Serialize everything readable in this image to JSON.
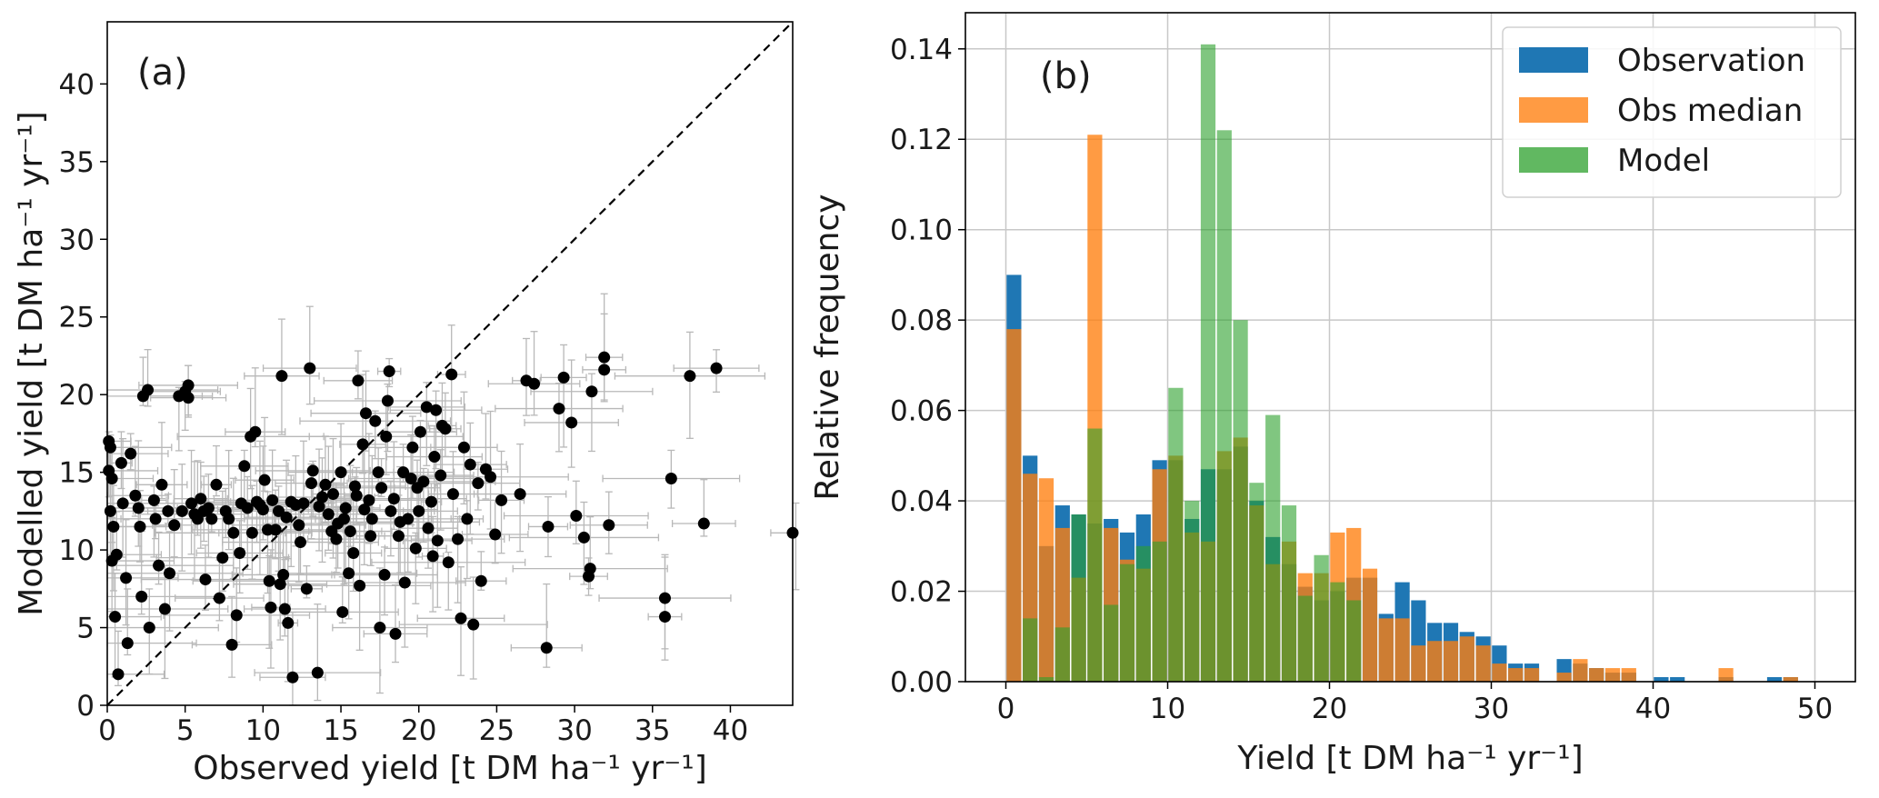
{
  "chart_data": [
    {
      "type": "scatter",
      "panel_label": "(a)",
      "xlabel": "Observed yield [t DM ha⁻¹ yr⁻¹]",
      "ylabel": "Modelled yield [t DM ha⁻¹ yr⁻¹]",
      "xlim": [
        0,
        44
      ],
      "ylim": [
        0,
        44
      ],
      "xticks": [
        0,
        5,
        10,
        15,
        20,
        25,
        30,
        35,
        40
      ],
      "yticks": [
        0,
        5,
        10,
        15,
        20,
        25,
        30,
        35,
        40
      ],
      "grid": false,
      "one_to_one_line": true,
      "colors": {
        "points": "#000000",
        "errorbars": "#b8b8b8",
        "diagonal": "#000000"
      },
      "points": [
        [
          0.1,
          17.0
        ],
        [
          0.2,
          16.6
        ],
        [
          0.1,
          15.1
        ],
        [
          0.3,
          14.6
        ],
        [
          0.2,
          12.5
        ],
        [
          0.4,
          11.5
        ],
        [
          0.3,
          9.3
        ],
        [
          0.6,
          9.7
        ],
        [
          0.5,
          5.7
        ],
        [
          0.7,
          2.0
        ],
        [
          0.9,
          15.6
        ],
        [
          1.0,
          13.0
        ],
        [
          1.2,
          8.2
        ],
        [
          1.5,
          16.2
        ],
        [
          1.3,
          4.0
        ],
        [
          1.8,
          13.5
        ],
        [
          2.0,
          12.7
        ],
        [
          2.1,
          11.5
        ],
        [
          2.2,
          7.0
        ],
        [
          2.3,
          19.9
        ],
        [
          2.6,
          20.3
        ],
        [
          2.7,
          5.0
        ],
        [
          3.0,
          13.2
        ],
        [
          3.1,
          12.0
        ],
        [
          3.3,
          9.0
        ],
        [
          3.5,
          14.2
        ],
        [
          3.7,
          6.2
        ],
        [
          3.9,
          12.5
        ],
        [
          4.0,
          8.5
        ],
        [
          4.3,
          11.6
        ],
        [
          4.6,
          19.9
        ],
        [
          4.8,
          12.5
        ],
        [
          5.0,
          20.2
        ],
        [
          5.2,
          19.8
        ],
        [
          5.2,
          20.6
        ],
        [
          5.4,
          13.0
        ],
        [
          5.6,
          12.3
        ],
        [
          5.8,
          12.0
        ],
        [
          6.0,
          13.3
        ],
        [
          6.2,
          12.5
        ],
        [
          6.3,
          8.1
        ],
        [
          6.5,
          12.7
        ],
        [
          6.7,
          12.0
        ],
        [
          7.0,
          14.2
        ],
        [
          7.2,
          6.9
        ],
        [
          7.4,
          9.5
        ],
        [
          7.6,
          12.5
        ],
        [
          7.8,
          12.0
        ],
        [
          8.0,
          3.9
        ],
        [
          8.1,
          11.1
        ],
        [
          8.3,
          5.8
        ],
        [
          8.5,
          9.8
        ],
        [
          8.6,
          13.0
        ],
        [
          8.8,
          15.4
        ],
        [
          9.0,
          12.7
        ],
        [
          9.2,
          17.3
        ],
        [
          9.5,
          17.6
        ],
        [
          9.3,
          11.1
        ],
        [
          9.6,
          13.1
        ],
        [
          9.8,
          12.9
        ],
        [
          10.0,
          12.6
        ],
        [
          10.1,
          14.5
        ],
        [
          10.3,
          11.3
        ],
        [
          10.4,
          8.0
        ],
        [
          10.5,
          6.3
        ],
        [
          10.6,
          13.2
        ],
        [
          10.8,
          11.3
        ],
        [
          11.0,
          12.5
        ],
        [
          11.1,
          7.8
        ],
        [
          11.2,
          21.2
        ],
        [
          11.3,
          8.4
        ],
        [
          11.4,
          6.2
        ],
        [
          11.5,
          12.1
        ],
        [
          11.6,
          5.3
        ],
        [
          11.8,
          13.1
        ],
        [
          11.9,
          1.8
        ],
        [
          12.1,
          12.9
        ],
        [
          12.3,
          11.6
        ],
        [
          12.4,
          10.5
        ],
        [
          12.6,
          13.0
        ],
        [
          12.8,
          7.5
        ],
        [
          13.0,
          21.7
        ],
        [
          13.1,
          14.3
        ],
        [
          13.2,
          15.1
        ],
        [
          13.5,
          2.1
        ],
        [
          13.6,
          12.8
        ],
        [
          13.8,
          13.4
        ],
        [
          14.0,
          14.2
        ],
        [
          14.2,
          12.3
        ],
        [
          14.4,
          11.2
        ],
        [
          14.5,
          13.6
        ],
        [
          14.7,
          10.7
        ],
        [
          14.8,
          11.7
        ],
        [
          15.0,
          15.0
        ],
        [
          15.1,
          6.0
        ],
        [
          15.2,
          12.0
        ],
        [
          15.3,
          12.7
        ],
        [
          15.5,
          8.5
        ],
        [
          15.6,
          11.2
        ],
        [
          15.8,
          9.8
        ],
        [
          15.9,
          14.1
        ],
        [
          16.0,
          13.5
        ],
        [
          16.1,
          20.9
        ],
        [
          16.2,
          7.7
        ],
        [
          16.4,
          16.8
        ],
        [
          16.5,
          12.6
        ],
        [
          16.6,
          18.8
        ],
        [
          16.8,
          13.2
        ],
        [
          16.9,
          10.9
        ],
        [
          17.0,
          12.0
        ],
        [
          17.2,
          18.3
        ],
        [
          17.4,
          15.0
        ],
        [
          17.5,
          5.0
        ],
        [
          17.6,
          14.0
        ],
        [
          17.8,
          8.4
        ],
        [
          17.9,
          17.3
        ],
        [
          18.0,
          19.6
        ],
        [
          18.1,
          21.5
        ],
        [
          18.2,
          12.5
        ],
        [
          18.4,
          13.3
        ],
        [
          18.5,
          4.6
        ],
        [
          18.7,
          10.9
        ],
        [
          18.8,
          11.8
        ],
        [
          19.0,
          15.0
        ],
        [
          19.1,
          7.9
        ],
        [
          19.3,
          12.0
        ],
        [
          19.5,
          14.6
        ],
        [
          19.6,
          16.6
        ],
        [
          19.8,
          10.1
        ],
        [
          19.9,
          14.0
        ],
        [
          20.0,
          12.5
        ],
        [
          20.1,
          17.6
        ],
        [
          20.3,
          14.4
        ],
        [
          20.5,
          19.2
        ],
        [
          20.6,
          11.4
        ],
        [
          20.8,
          13.1
        ],
        [
          20.9,
          9.6
        ],
        [
          21.0,
          16.0
        ],
        [
          21.1,
          19.0
        ],
        [
          21.2,
          10.6
        ],
        [
          21.4,
          14.8
        ],
        [
          21.5,
          18.0
        ],
        [
          21.7,
          17.8
        ],
        [
          21.9,
          9.2
        ],
        [
          22.1,
          21.3
        ],
        [
          22.2,
          13.6
        ],
        [
          22.5,
          10.7
        ],
        [
          22.7,
          5.6
        ],
        [
          22.9,
          16.6
        ],
        [
          23.1,
          12.0
        ],
        [
          23.3,
          15.5
        ],
        [
          23.5,
          5.2
        ],
        [
          23.8,
          14.3
        ],
        [
          24.0,
          8.0
        ],
        [
          24.3,
          15.2
        ],
        [
          24.6,
          14.7
        ],
        [
          24.9,
          11.0
        ],
        [
          25.3,
          13.2
        ],
        [
          26.5,
          13.6
        ],
        [
          26.9,
          20.9
        ],
        [
          27.4,
          20.7
        ],
        [
          28.2,
          3.7
        ],
        [
          28.3,
          11.5
        ],
        [
          29.0,
          19.1
        ],
        [
          29.3,
          21.1
        ],
        [
          29.8,
          18.2
        ],
        [
          30.1,
          12.2
        ],
        [
          30.6,
          10.8
        ],
        [
          30.9,
          8.3
        ],
        [
          31.0,
          8.8
        ],
        [
          31.1,
          20.2
        ],
        [
          31.9,
          22.4
        ],
        [
          31.9,
          21.6
        ],
        [
          32.2,
          11.6
        ],
        [
          35.8,
          6.9
        ],
        [
          35.8,
          5.7
        ],
        [
          36.2,
          14.6
        ],
        [
          37.4,
          21.2
        ],
        [
          38.3,
          11.7
        ],
        [
          39.1,
          21.7
        ],
        [
          44.2,
          11.1
        ]
      ]
    },
    {
      "type": "bar",
      "panel_label": "(b)",
      "xlabel": "Yield [t DM ha⁻¹ yr⁻¹]",
      "ylabel": "Relative frequency",
      "xlim": [
        -2.5,
        52.5
      ],
      "ylim": [
        0,
        0.148
      ],
      "xticks": [
        0,
        10,
        20,
        30,
        40,
        50
      ],
      "yticks": [
        0.0,
        0.02,
        0.04,
        0.06,
        0.08,
        0.1,
        0.12,
        0.14
      ],
      "grid": true,
      "legend_position": "top-right",
      "bin_width": 1,
      "bin_starts": [
        0,
        1,
        2,
        3,
        4,
        5,
        6,
        7,
        8,
        9,
        10,
        11,
        12,
        13,
        14,
        15,
        16,
        17,
        18,
        19,
        20,
        21,
        22,
        23,
        24,
        25,
        26,
        27,
        28,
        29,
        30,
        31,
        32,
        33,
        34,
        35,
        36,
        37,
        38,
        39,
        40,
        41,
        42,
        43,
        44,
        45,
        46,
        47,
        48,
        49
      ],
      "series": [
        {
          "name": "Observation",
          "color": "#1f77b4",
          "alpha": 1.0,
          "values": [
            0.09,
            0.05,
            0.03,
            0.039,
            0.037,
            0.035,
            0.036,
            0.033,
            0.037,
            0.049,
            0.049,
            0.036,
            0.047,
            0.047,
            0.052,
            0.04,
            0.032,
            0.026,
            0.021,
            0.018,
            0.02,
            0.023,
            0.023,
            0.015,
            0.022,
            0.018,
            0.013,
            0.013,
            0.011,
            0.01,
            0.008,
            0.004,
            0.004,
            0.0,
            0.005,
            0.004,
            0.003,
            0.002,
            0.002,
            0.0,
            0.001,
            0.001,
            0.0,
            0.0,
            0.001,
            0.0,
            0.0,
            0.001,
            0.001,
            0.0
          ]
        },
        {
          "name": "Obs median",
          "color": "#ff7f0e",
          "alpha": 0.78,
          "values": [
            0.078,
            0.046,
            0.045,
            0.034,
            0.023,
            0.121,
            0.034,
            0.027,
            0.025,
            0.047,
            0.05,
            0.033,
            0.031,
            0.051,
            0.054,
            0.039,
            0.026,
            0.031,
            0.024,
            0.024,
            0.033,
            0.034,
            0.025,
            0.014,
            0.014,
            0.008,
            0.009,
            0.009,
            0.01,
            0.008,
            0.004,
            0.003,
            0.003,
            0.0,
            0.002,
            0.005,
            0.003,
            0.003,
            0.003,
            0.0,
            0.0,
            0.0,
            0.0,
            0.0,
            0.003,
            0.0,
            0.0,
            0.0,
            0.001,
            0.0
          ]
        },
        {
          "name": "Model",
          "color": "#2ca02c",
          "alpha": 0.6,
          "values": [
            0.0,
            0.014,
            0.001,
            0.012,
            0.037,
            0.056,
            0.017,
            0.026,
            0.03,
            0.031,
            0.065,
            0.04,
            0.141,
            0.122,
            0.08,
            0.044,
            0.059,
            0.039,
            0.019,
            0.028,
            0.022,
            0.018,
            0.0,
            0.0,
            0.0,
            0.0,
            0.0,
            0.0,
            0.0,
            0.0,
            0.0,
            0.0,
            0.0,
            0.0,
            0.0,
            0.0,
            0.0,
            0.0,
            0.0,
            0.0,
            0.0,
            0.0,
            0.0,
            0.0,
            0.0,
            0.0,
            0.0,
            0.0,
            0.0,
            0.0
          ]
        }
      ]
    }
  ]
}
